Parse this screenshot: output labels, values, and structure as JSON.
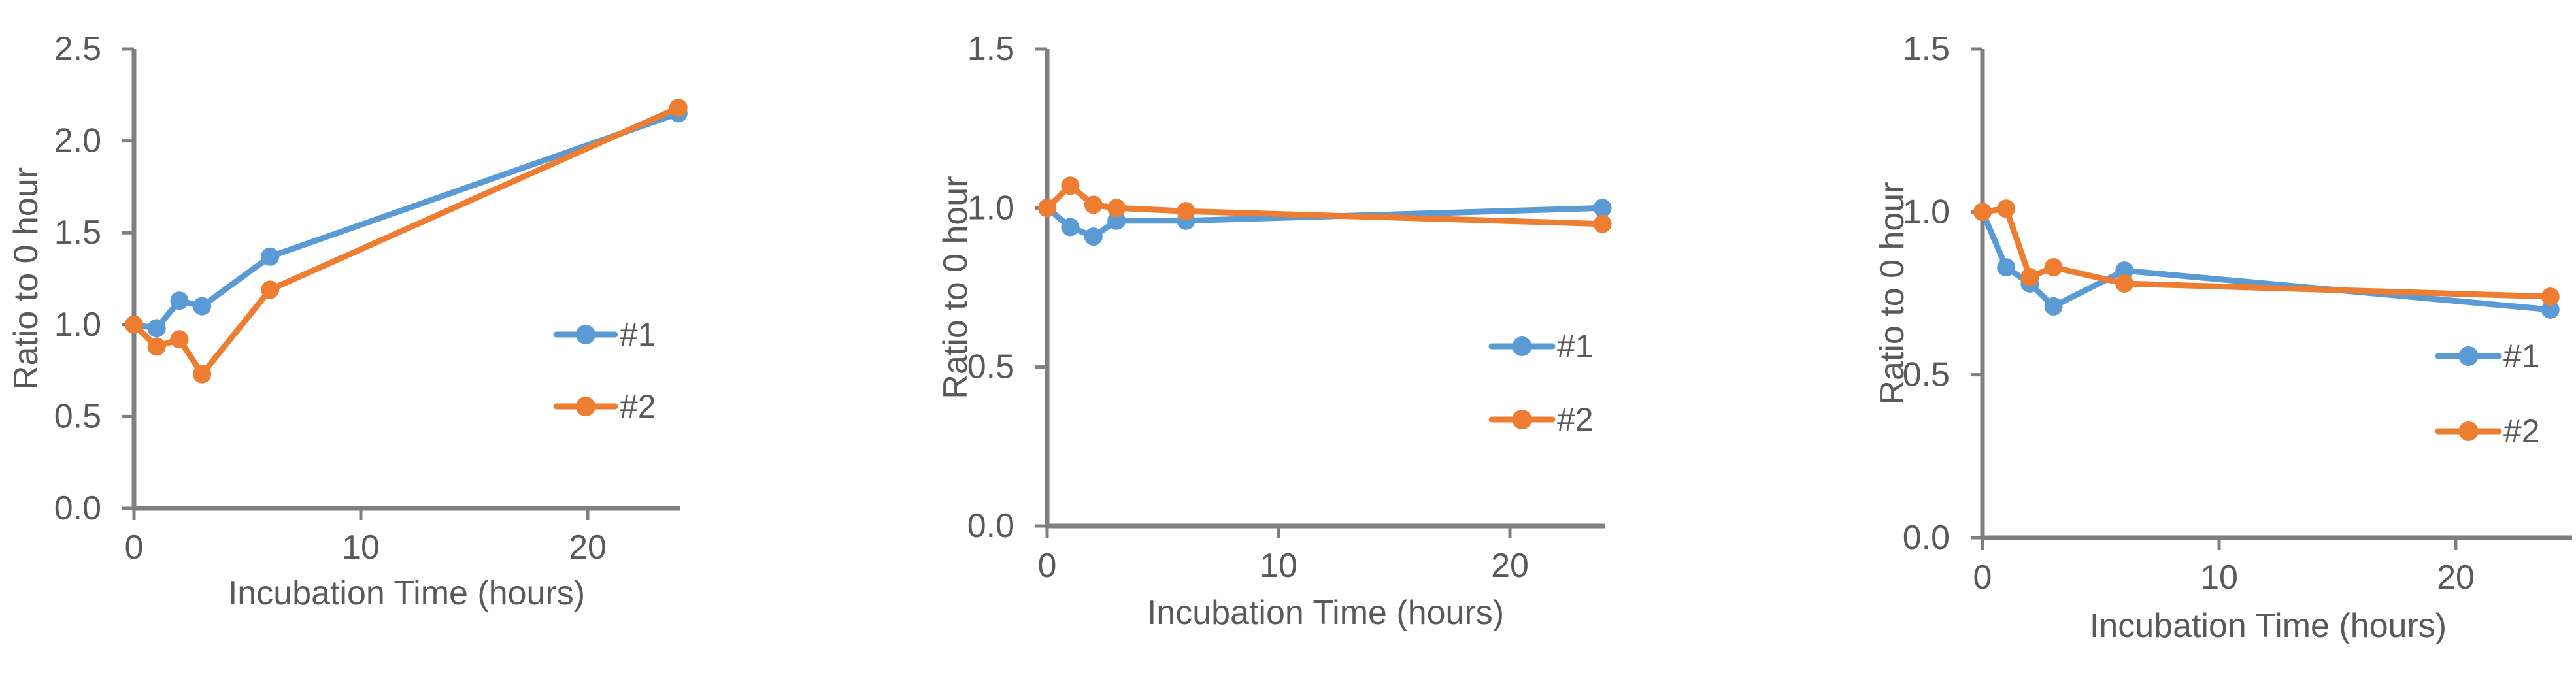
{
  "figure": {
    "background": "#FFFFFF",
    "description_visible_text_only": true
  },
  "colors": {
    "series1": "#5B9BD5",
    "series2": "#ED7D31",
    "axis_line": "#7F7F7F",
    "text": "#595959",
    "background": "#FFFFFF"
  },
  "chart_data": [
    {
      "type": "line",
      "title": "",
      "x": [
        0,
        1,
        2,
        3,
        6,
        24
      ],
      "series": [
        {
          "name": "#1",
          "color_key": "series1",
          "values": [
            1.0,
            0.98,
            1.13,
            1.1,
            1.37,
            2.15
          ]
        },
        {
          "name": "#2",
          "color_key": "series2",
          "values": [
            1.0,
            0.88,
            0.92,
            0.73,
            1.19,
            2.18
          ]
        }
      ],
      "xlabel": "Incubation Time (hours)",
      "ylabel": "Ratio to 0 hour",
      "xlim": [
        0,
        25
      ],
      "ylim": [
        0,
        2.5
      ],
      "yticks": [
        "0.0",
        "0.5",
        "1.0",
        "1.5",
        "2.0",
        "2.5"
      ],
      "xticks": [
        "0",
        "10",
        "20"
      ],
      "grid": false,
      "legend_position": "inside-right",
      "marker": "circle"
    },
    {
      "type": "line",
      "title": "",
      "x": [
        0,
        1,
        2,
        3,
        6,
        24
      ],
      "series": [
        {
          "name": "#1",
          "color_key": "series1",
          "values": [
            1.0,
            0.94,
            0.91,
            0.96,
            0.96,
            1.0
          ]
        },
        {
          "name": "#2",
          "color_key": "series2",
          "values": [
            1.0,
            1.07,
            1.01,
            1.0,
            0.99,
            0.95
          ]
        }
      ],
      "xlabel": "Incubation Time (hours)",
      "ylabel": "Ratio to 0 hour",
      "xlim": [
        0,
        25
      ],
      "ylim": [
        0,
        1.5
      ],
      "yticks": [
        "0.0",
        "0.5",
        "1.0",
        "1.5"
      ],
      "xticks": [
        "0",
        "10",
        "20"
      ],
      "grid": false,
      "legend_position": "inside-right",
      "marker": "circle"
    },
    {
      "type": "line",
      "title": "",
      "x": [
        0,
        1,
        2,
        3,
        6,
        24
      ],
      "series": [
        {
          "name": "#1",
          "color_key": "series1",
          "values": [
            1.0,
            0.83,
            0.78,
            0.71,
            0.82,
            0.7
          ]
        },
        {
          "name": "#2",
          "color_key": "series2",
          "values": [
            1.0,
            1.01,
            0.8,
            0.83,
            0.78,
            0.74
          ]
        }
      ],
      "xlabel": "Incubation Time (hours)",
      "ylabel": "Ratio to 0 hour",
      "xlim": [
        0,
        25
      ],
      "ylim": [
        0,
        1.5
      ],
      "yticks": [
        "0.0",
        "0.5",
        "1.0",
        "1.5"
      ],
      "xticks": [
        "0",
        "10",
        "20"
      ],
      "grid": false,
      "legend_position": "inside-right",
      "marker": "circle"
    }
  ]
}
